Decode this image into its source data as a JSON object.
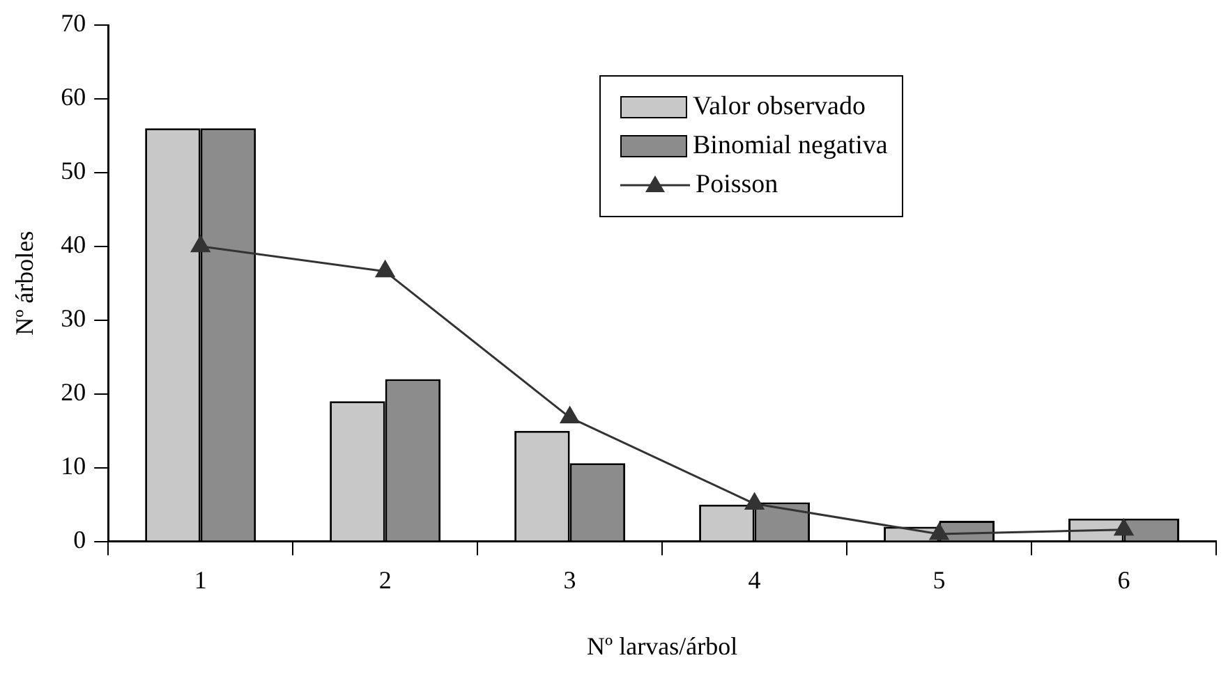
{
  "chart_data": {
    "type": "bar",
    "xlabel": "Nº larvas/árbol",
    "ylabel": "Nº árboles",
    "categories": [
      "1",
      "2",
      "3",
      "4",
      "5",
      "6"
    ],
    "series": [
      {
        "name": "Valor observado",
        "color": "#c8c8c8",
        "values": [
          56,
          19,
          15,
          5,
          2,
          3.1
        ]
      },
      {
        "name": "Binomial negativa",
        "color": "#8c8c8c",
        "values": [
          56,
          22,
          10.6,
          5.3,
          2.8,
          3.1
        ]
      },
      {
        "name": "Poisson",
        "type": "line",
        "color": "#333333",
        "marker": "triangle",
        "values": [
          40,
          36.6,
          16.8,
          5.1,
          1,
          1.6
        ]
      }
    ],
    "ylim": [
      0,
      70
    ],
    "yticks": [
      0,
      10,
      20,
      30,
      40,
      50,
      60,
      70
    ],
    "grid": false,
    "legend": "top right"
  }
}
